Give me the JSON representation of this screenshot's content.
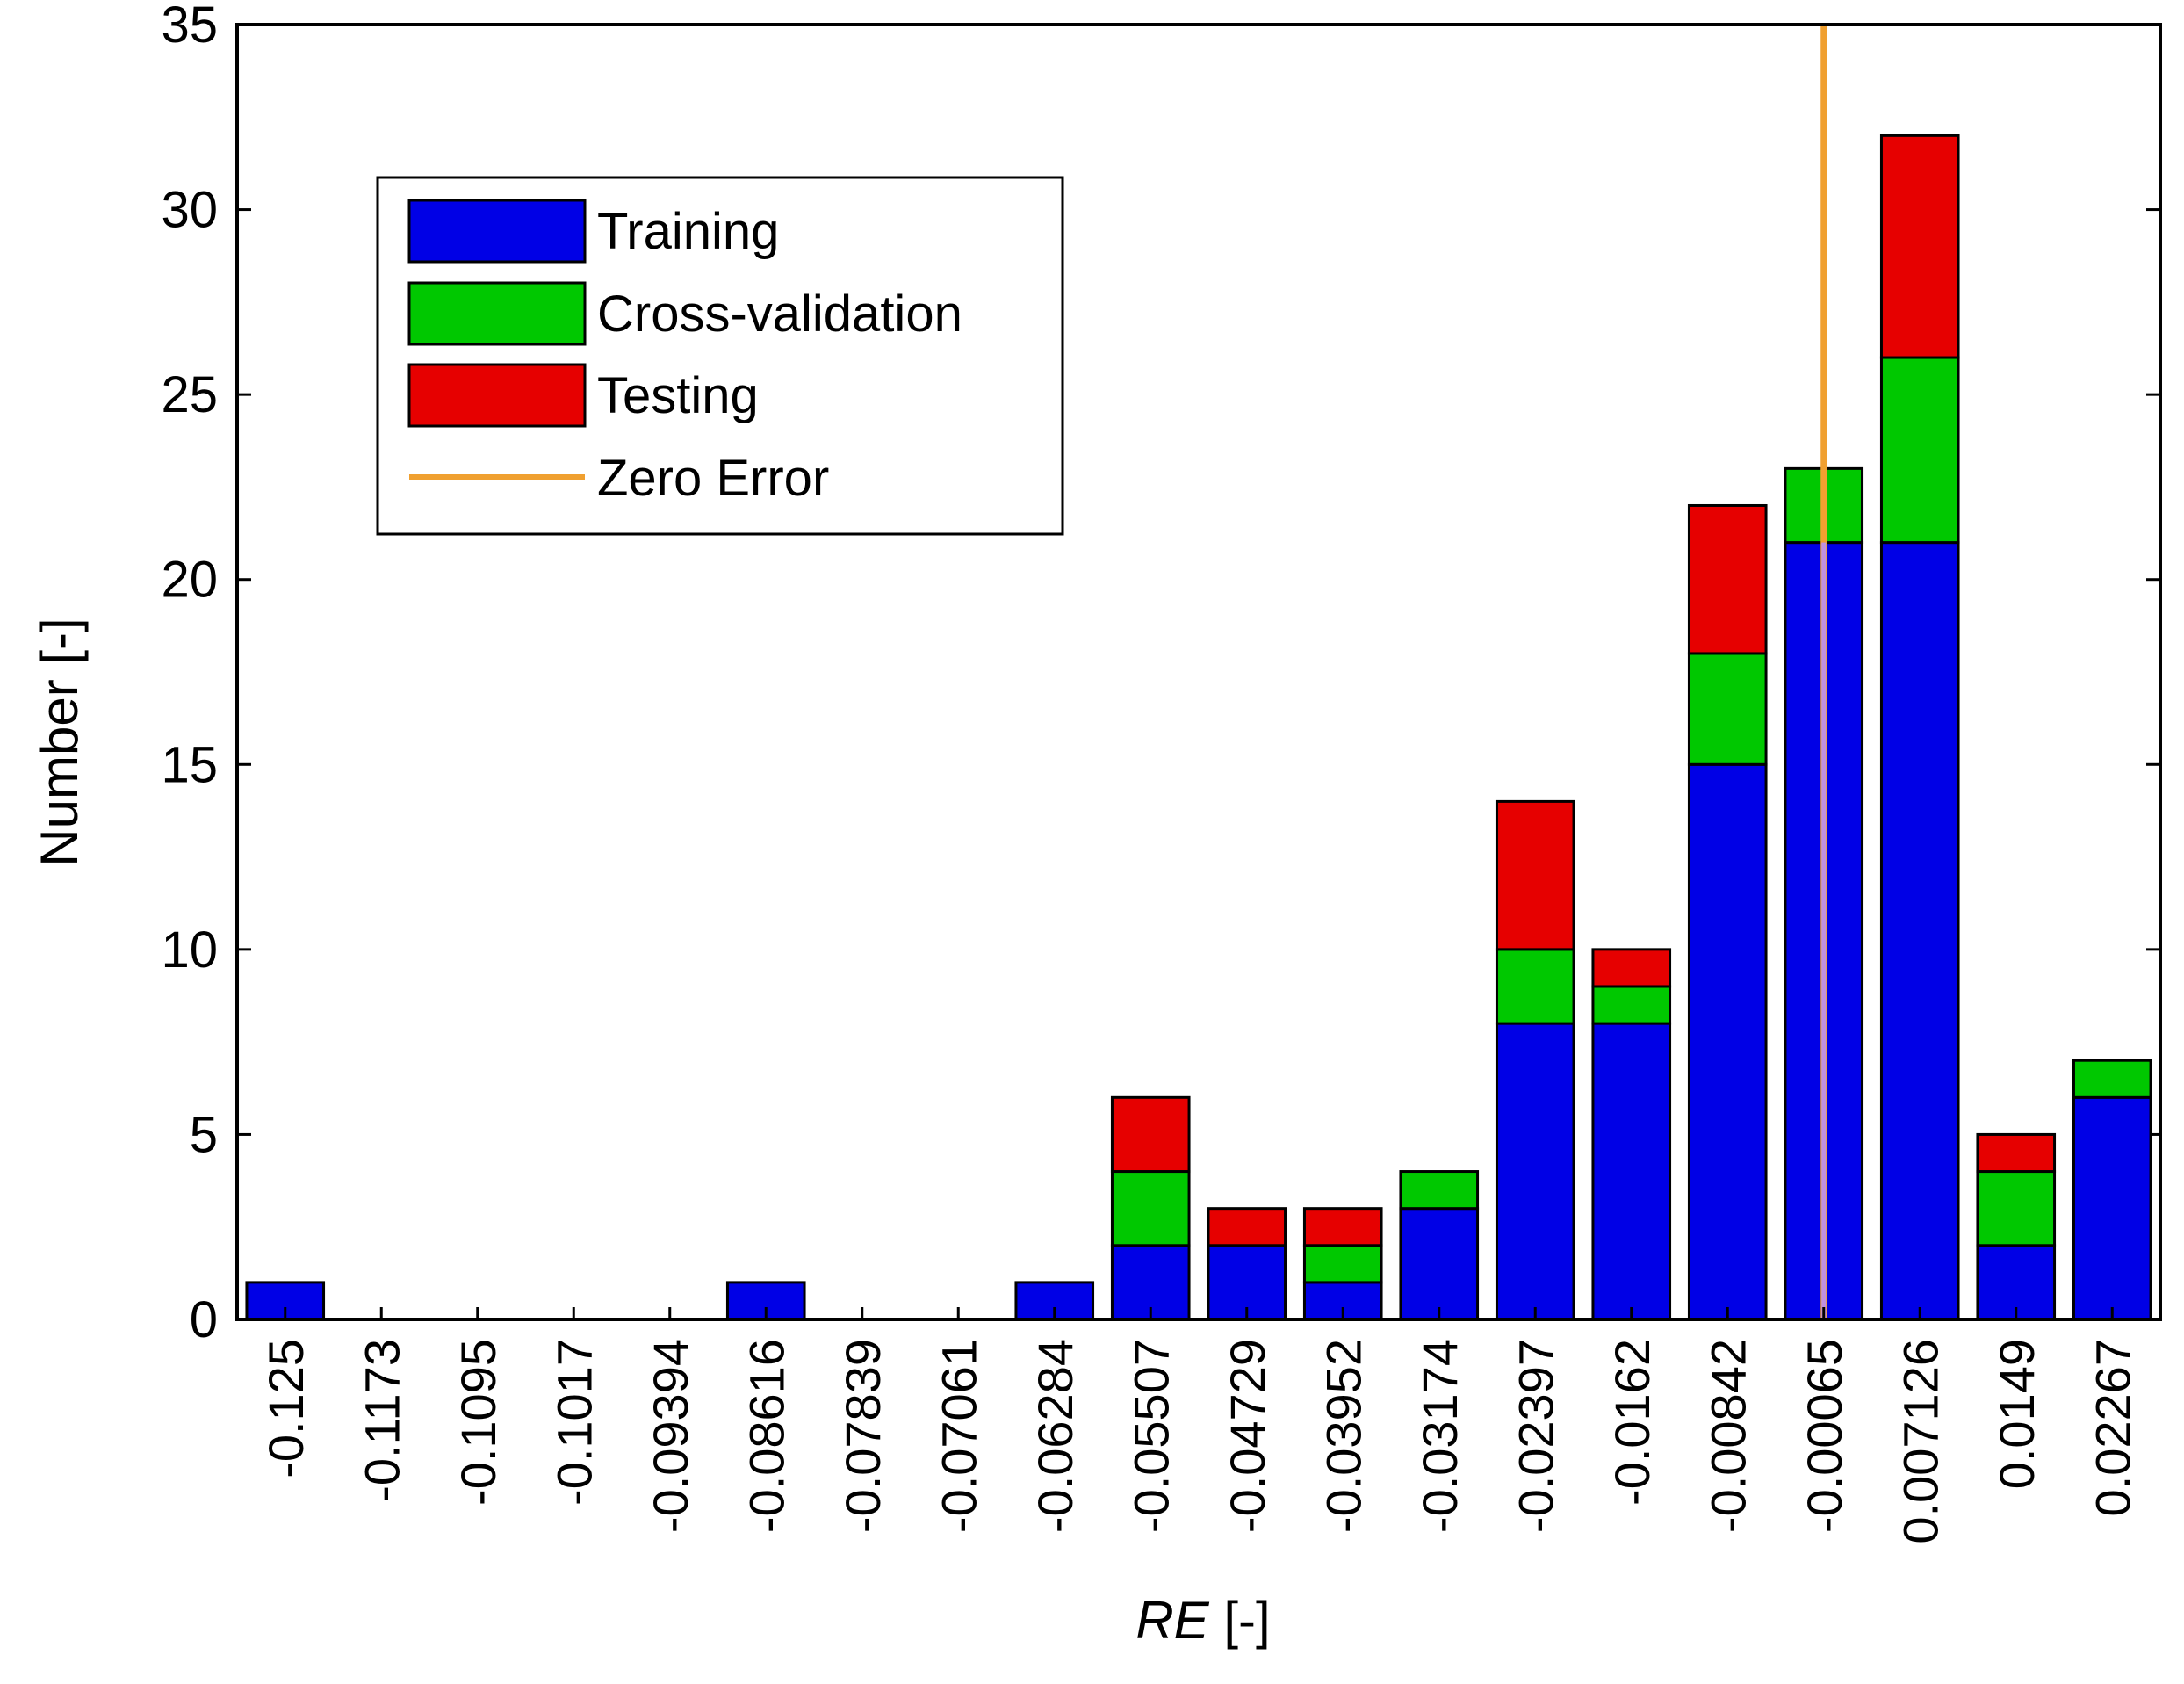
{
  "chart_data": {
    "type": "bar",
    "stacked": true,
    "title": "",
    "xlabel_italic": "RE",
    "xlabel_unit": " [-]",
    "ylabel": "Number [-]",
    "ylim": [
      0,
      35
    ],
    "yticks": [
      0,
      5,
      10,
      15,
      20,
      25,
      30,
      35
    ],
    "categories": [
      "-0.125",
      "-0.1173",
      "-0.1095",
      "-0.1017",
      "-0.09394",
      "-0.08616",
      "-0.07839",
      "-0.07061",
      "-0.06284",
      "-0.05507",
      "-0.04729",
      "-0.03952",
      "-0.03174",
      "-0.02397",
      "-0.0162",
      "-0.00842",
      "-0.00065",
      "0.007126",
      "0.0149",
      "0.02267"
    ],
    "series": [
      {
        "name": "Training",
        "color": "#0000e6",
        "values": [
          1,
          0,
          0,
          0,
          0,
          1,
          0,
          0,
          1,
          2,
          2,
          1,
          3,
          8,
          8,
          15,
          21,
          21,
          2,
          6
        ]
      },
      {
        "name": "Cross-validation",
        "color": "#00c800",
        "values": [
          0,
          0,
          0,
          0,
          0,
          0,
          0,
          0,
          0,
          2,
          0,
          1,
          1,
          2,
          1,
          3,
          2,
          5,
          2,
          1
        ]
      },
      {
        "name": "Testing",
        "color": "#e60000",
        "values": [
          0,
          0,
          0,
          0,
          0,
          0,
          0,
          0,
          0,
          2,
          1,
          1,
          0,
          4,
          1,
          4,
          0,
          6,
          1,
          0
        ]
      }
    ],
    "reference_line": {
      "name": "Zero Error",
      "color": "#f0a030",
      "x_category_index": 16
    },
    "legend_position": "top-left",
    "grid": false
  }
}
